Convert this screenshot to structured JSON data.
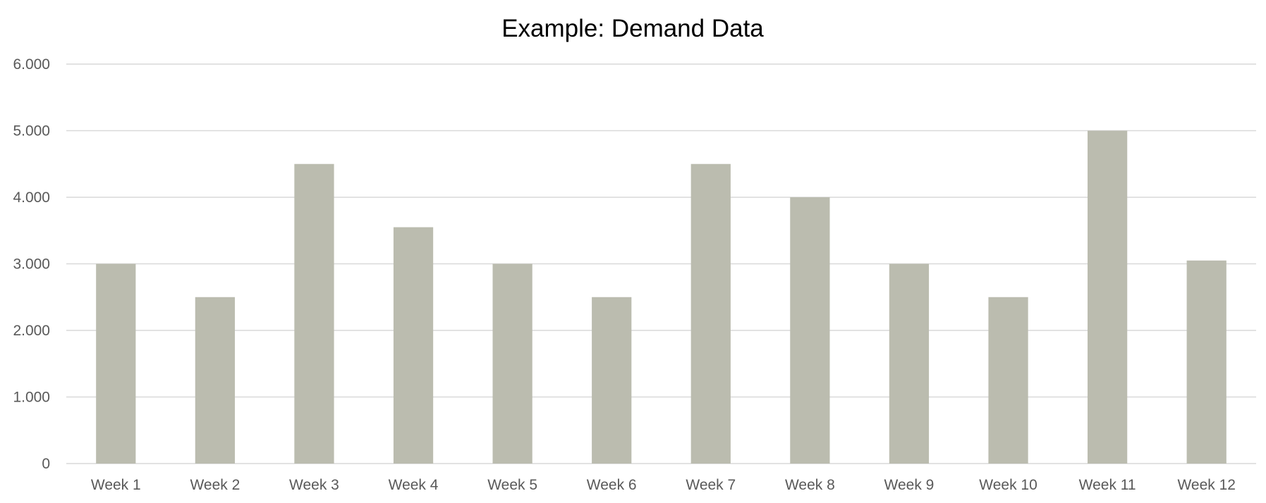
{
  "chart_data": {
    "type": "bar",
    "title": "Example: Demand Data",
    "xlabel": "",
    "ylabel": "",
    "categories": [
      "Week 1",
      "Week 2",
      "Week 3",
      "Week 4",
      "Week 5",
      "Week 6",
      "Week 7",
      "Week 8",
      "Week 9",
      "Week 10",
      "Week 11",
      "Week 12"
    ],
    "values": [
      3000,
      2500,
      4500,
      3550,
      3000,
      2500,
      4500,
      4000,
      3000,
      2500,
      5000,
      3050
    ],
    "ylim": [
      0,
      6000
    ],
    "yticks": [
      0,
      1000,
      2000,
      3000,
      4000,
      5000,
      6000
    ],
    "ytick_labels": [
      "0",
      "1.000",
      "2.000",
      "3.000",
      "4.000",
      "5.000",
      "6.000"
    ],
    "grid": true,
    "legend": "none",
    "bar_color": "#bbbcaf"
  }
}
